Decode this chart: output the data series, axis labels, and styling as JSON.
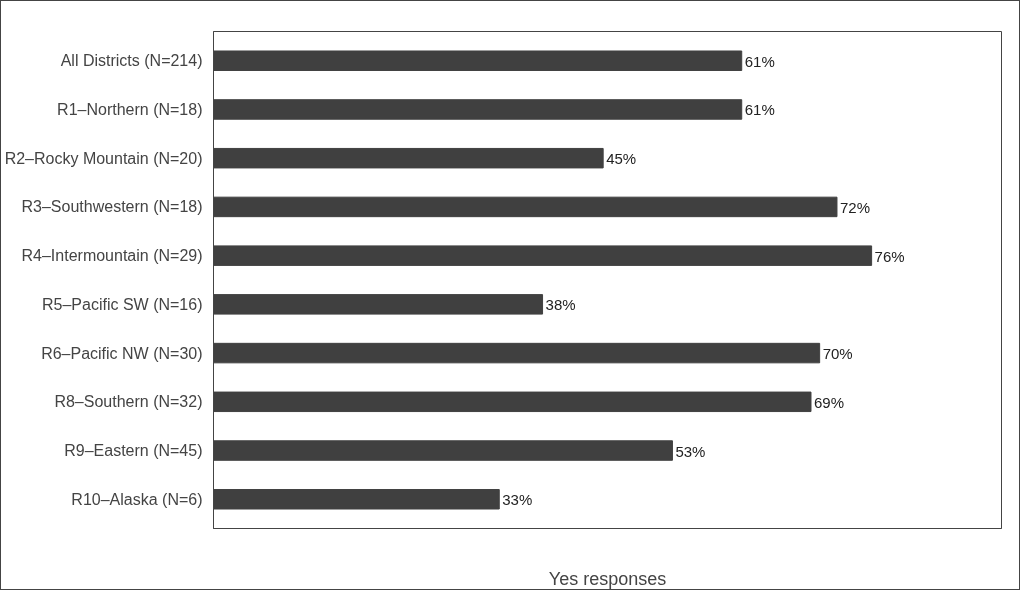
{
  "chart_data": {
    "type": "bar",
    "orientation": "horizontal",
    "xlabel": "Yes responses",
    "categories": [
      "All Districts (N=214)",
      "R1–Northern (N=18)",
      "R2–Rocky Mountain (N=20)",
      "R3–Southwestern (N=18)",
      "R4–Intermountain (N=29)",
      "R5–Pacific SW (N=16)",
      "R6–Pacific NW (N=30)",
      "R8–Southern (N=32)",
      "R9–Eastern (N=45)",
      "R10–Alaska (N=6)"
    ],
    "values": [
      61,
      61,
      45,
      72,
      76,
      38,
      70,
      69,
      53,
      33
    ],
    "value_labels": [
      "61%",
      "61%",
      "45%",
      "72%",
      "76%",
      "38%",
      "70%",
      "69%",
      "53%",
      "33%"
    ],
    "color": "#404040",
    "xlim": [
      0,
      91
    ],
    "tick_labels": "y",
    "grid": false
  }
}
